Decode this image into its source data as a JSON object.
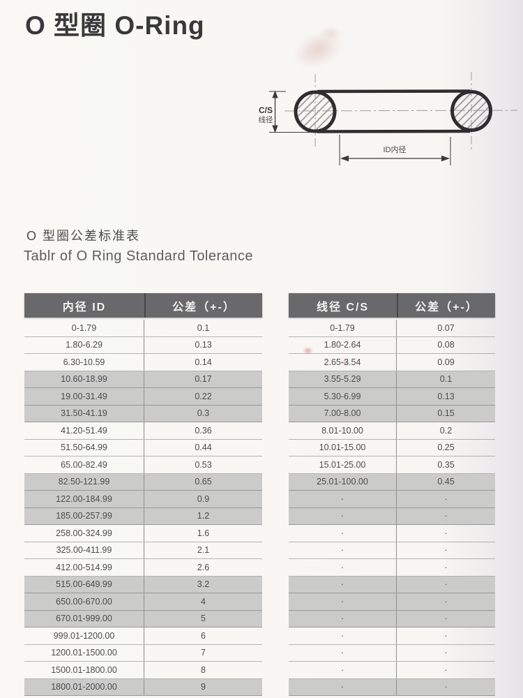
{
  "page": {
    "title": "O 型圈 O-Ring",
    "subtitle_zh": "O 型圈公差标准表",
    "subtitle_en": "Tablr of O Ring Standard Tolerance"
  },
  "diagram": {
    "cs_label_line1": "C/S",
    "cs_label_line2": "线径",
    "id_label": "ID内径"
  },
  "tables": {
    "id_table": {
      "headers": [
        "内径 ID",
        "公差（+-）"
      ],
      "rows": [
        {
          "range": "0-1.79",
          "tol": "0.1",
          "shaded": false
        },
        {
          "range": "1.80-6.29",
          "tol": "0.13",
          "shaded": false
        },
        {
          "range": "6.30-10.59",
          "tol": "0.14",
          "shaded": false
        },
        {
          "range": "10.60-18.99",
          "tol": "0.17",
          "shaded": true
        },
        {
          "range": "19.00-31.49",
          "tol": "0.22",
          "shaded": true
        },
        {
          "range": "31.50-41.19",
          "tol": "0.3",
          "shaded": true
        },
        {
          "range": "41.20-51.49",
          "tol": "0.36",
          "shaded": false
        },
        {
          "range": "51.50-64.99",
          "tol": "0.44",
          "shaded": false
        },
        {
          "range": "65.00-82.49",
          "tol": "0.53",
          "shaded": false
        },
        {
          "range": "82.50-121.99",
          "tol": "0.65",
          "shaded": true
        },
        {
          "range": "122.00-184.99",
          "tol": "0.9",
          "shaded": true
        },
        {
          "range": "185.00-257.99",
          "tol": "1.2",
          "shaded": true
        },
        {
          "range": "258.00-324.99",
          "tol": "1.6",
          "shaded": false
        },
        {
          "range": "325.00-411.99",
          "tol": "2.1",
          "shaded": false
        },
        {
          "range": "412.00-514.99",
          "tol": "2.6",
          "shaded": false
        },
        {
          "range": "515.00-649.99",
          "tol": "3.2",
          "shaded": true
        },
        {
          "range": "650.00-670.00",
          "tol": "4",
          "shaded": true
        },
        {
          "range": "670.01-999.00",
          "tol": "5",
          "shaded": true
        },
        {
          "range": "999.01-1200.00",
          "tol": "6",
          "shaded": false
        },
        {
          "range": "1200.01-1500.00",
          "tol": "7",
          "shaded": false
        },
        {
          "range": "1500.01-1800.00",
          "tol": "8",
          "shaded": false
        },
        {
          "range": "1800.01-2000.00",
          "tol": "9",
          "shaded": true
        }
      ]
    },
    "cs_table": {
      "headers": [
        "线径 C/S",
        "公差（+-）"
      ],
      "rows": [
        {
          "range": "0-1.79",
          "tol": "0.07",
          "shaded": false
        },
        {
          "range": "1.80-2.64",
          "tol": "0.08",
          "shaded": false
        },
        {
          "range": "2.65-3.54",
          "tol": "0.09",
          "shaded": false
        },
        {
          "range": "3.55-5.29",
          "tol": "0.1",
          "shaded": true
        },
        {
          "range": "5.30-6.99",
          "tol": "0.13",
          "shaded": true
        },
        {
          "range": "7.00-8.00",
          "tol": "0.15",
          "shaded": true
        },
        {
          "range": "8.01-10.00",
          "tol": "0.2",
          "shaded": false
        },
        {
          "range": "10.01-15.00",
          "tol": "0.25",
          "shaded": false
        },
        {
          "range": "15.01-25.00",
          "tol": "0.35",
          "shaded": false
        },
        {
          "range": "25.01-100.00",
          "tol": "0.45",
          "shaded": true
        },
        {
          "range": "·",
          "tol": "·",
          "shaded": true
        },
        {
          "range": "·",
          "tol": "·",
          "shaded": true
        },
        {
          "range": "·",
          "tol": "·",
          "shaded": false
        },
        {
          "range": "·",
          "tol": "·",
          "shaded": false
        },
        {
          "range": "·",
          "tol": "·",
          "shaded": false
        },
        {
          "range": "·",
          "tol": "·",
          "shaded": true
        },
        {
          "range": "·",
          "tol": "·",
          "shaded": true
        },
        {
          "range": "·",
          "tol": "·",
          "shaded": true
        },
        {
          "range": "·",
          "tol": "·",
          "shaded": false
        },
        {
          "range": "·",
          "tol": "·",
          "shaded": false
        },
        {
          "range": "·",
          "tol": "·",
          "shaded": false
        },
        {
          "range": "·",
          "tol": "·",
          "shaded": true
        }
      ]
    }
  },
  "colors": {
    "header_bg": "#69696c",
    "header_text": "#f4f3f1",
    "shaded_row": "#cbcbca",
    "row_text": "#4b4b4d",
    "diagram_ink": "#2e2e30"
  }
}
